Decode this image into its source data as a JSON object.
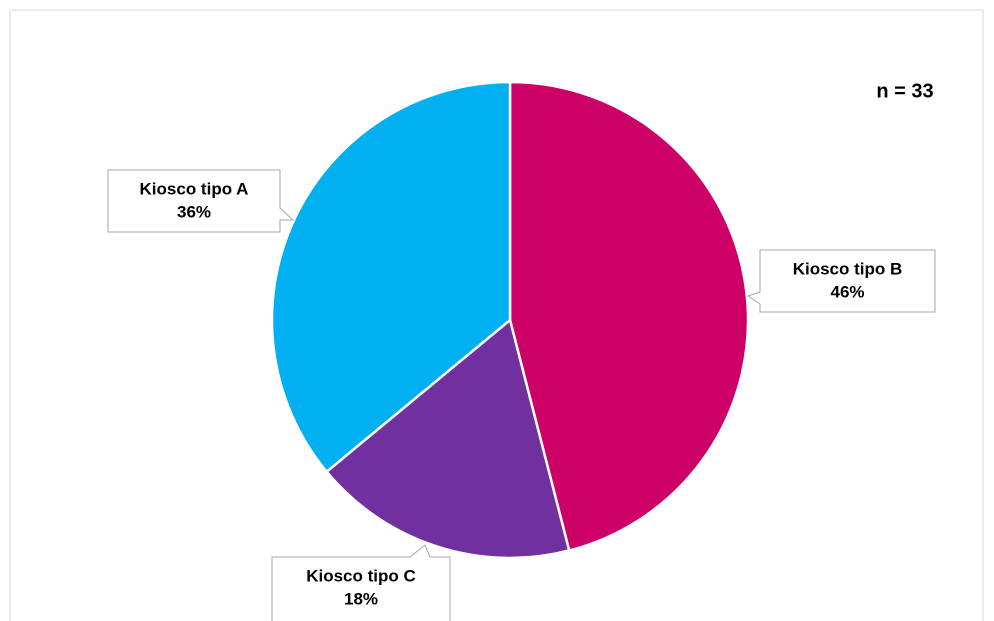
{
  "chart_data": {
    "type": "pie",
    "annotation": "n = 33",
    "categories": [
      "Kiosco tipo B",
      "Kiosco tipo C",
      "Kiosco tipo A"
    ],
    "values": [
      46,
      18,
      36
    ],
    "value_labels": [
      "46%",
      "18%",
      "36%"
    ],
    "colors": [
      "#cc0066",
      "#7030a0",
      "#00b0f0"
    ]
  }
}
